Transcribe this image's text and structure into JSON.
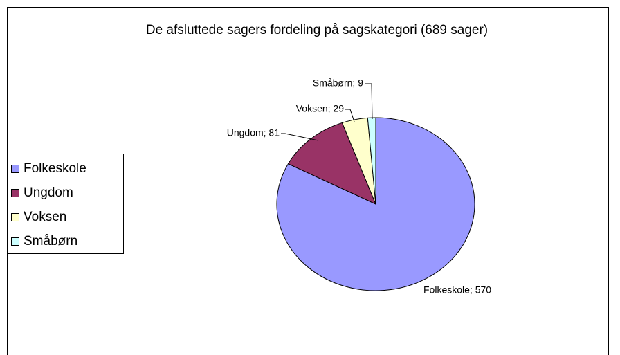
{
  "chart_data": {
    "type": "pie",
    "title": "De afsluttede sagers fordeling på sagskategori (689 sager)",
    "categories": [
      "Folkeskole",
      "Ungdom",
      "Voksen",
      "Småbørn"
    ],
    "values": [
      570,
      81,
      29,
      9
    ],
    "value_labels": [
      "Folkeskole; 570",
      "Ungdom; 81",
      "Voksen; 29",
      "Småbørn; 9"
    ],
    "colors": [
      "#9999ff",
      "#993366",
      "#ffffcc",
      "#ccffff"
    ],
    "legend": "left"
  }
}
